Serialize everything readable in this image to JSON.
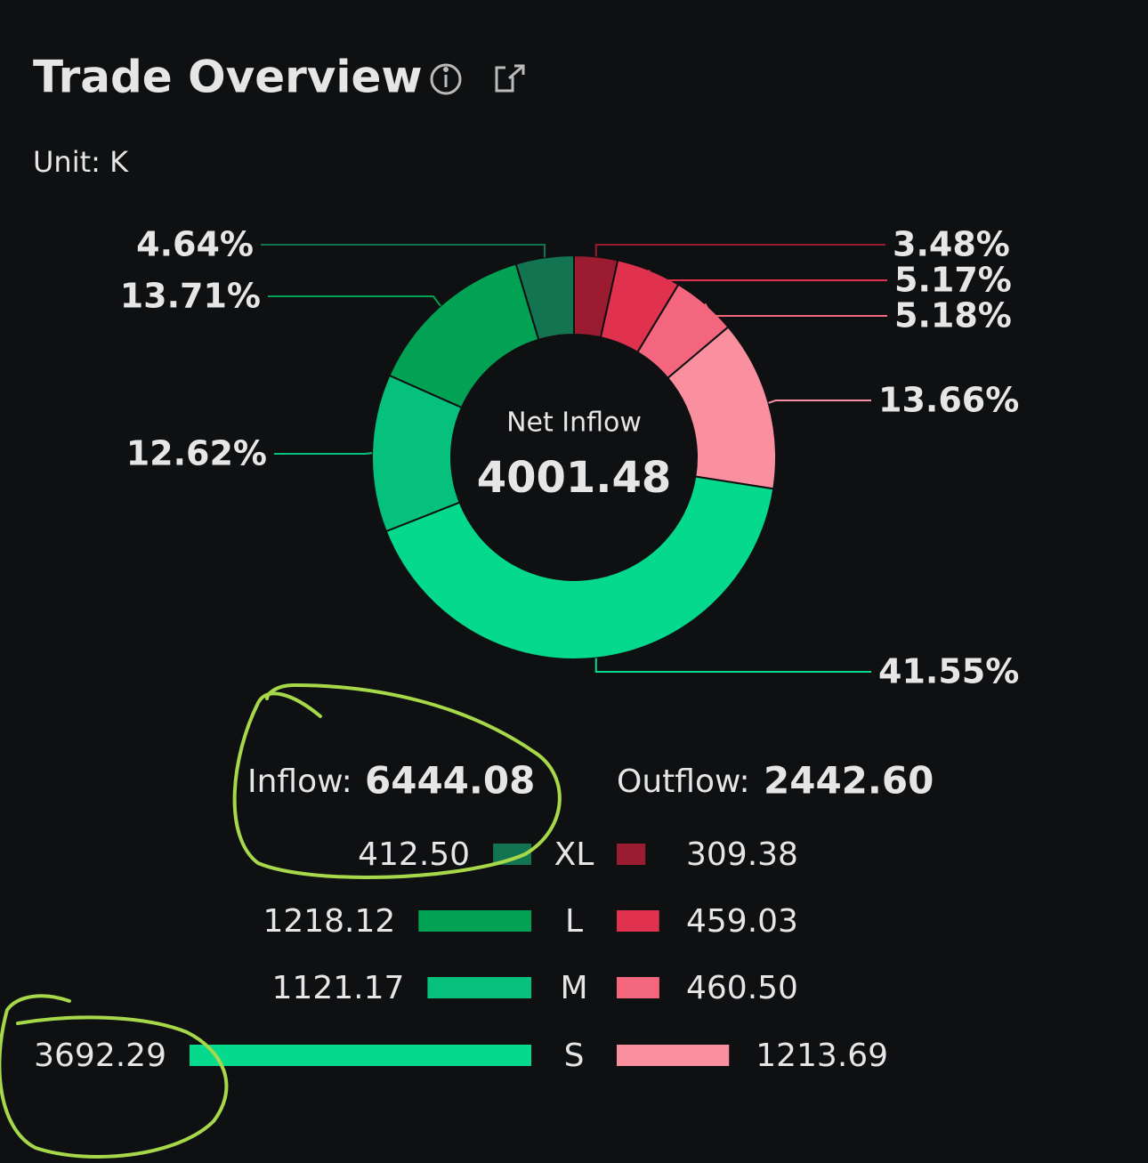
{
  "header": {
    "title": "Trade Overview",
    "unit": "Unit: K"
  },
  "chart_data": [
    {
      "type": "donut",
      "center_label": "Net Inflow",
      "center_value": 4001.48,
      "values": [
        3.48,
        5.17,
        5.18,
        13.66,
        41.55,
        12.62,
        13.71,
        4.64
      ],
      "value_labels": [
        "3.48%",
        "5.17%",
        "5.18%",
        "13.66%",
        "41.55%",
        "12.62%",
        "13.71%",
        "4.64%"
      ],
      "colors": [
        "#9b1b30",
        "#e0324f",
        "#f4667e",
        "#f98f9f",
        "#05d98d",
        "#06c07e",
        "#02a255",
        "#137452"
      ]
    },
    {
      "type": "butterfly-bar",
      "categories": [
        "XL",
        "L",
        "M",
        "S"
      ],
      "series": [
        {
          "name": "Inflow:",
          "total": "6444.08",
          "total_color": "#06a85a",
          "values": [
            412.5,
            1218.12,
            1121.17,
            3692.29
          ],
          "value_labels": [
            "412.50",
            "1218.12",
            "1121.17",
            "3692.29"
          ],
          "colors": [
            "#137452",
            "#02a255",
            "#06c07e",
            "#05d98d"
          ]
        },
        {
          "name": "Outflow:",
          "total": "2442.60",
          "total_color": "#e0324f",
          "values": [
            309.38,
            459.03,
            460.5,
            1213.69
          ],
          "value_labels": [
            "309.38",
            "459.03",
            "460.50",
            "1213.69"
          ],
          "colors": [
            "#9b1b30",
            "#e0324f",
            "#f4667e",
            "#f98f9f"
          ]
        }
      ]
    }
  ]
}
